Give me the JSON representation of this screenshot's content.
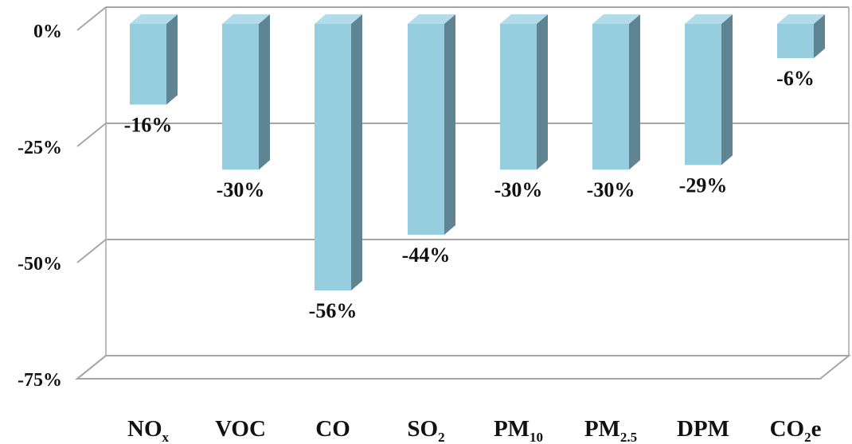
{
  "chart_data": {
    "type": "bar",
    "categories": [
      {
        "main": "NO",
        "sub": "x",
        "tail": ""
      },
      {
        "main": "VOC",
        "sub": "",
        "tail": ""
      },
      {
        "main": "CO",
        "sub": "",
        "tail": ""
      },
      {
        "main": "SO",
        "sub": "2",
        "tail": ""
      },
      {
        "main": "PM",
        "sub": "10",
        "tail": ""
      },
      {
        "main": "PM",
        "sub": "2.5",
        "tail": ""
      },
      {
        "main": "DPM",
        "sub": "",
        "tail": ""
      },
      {
        "main": "CO",
        "sub": "2",
        "tail": "e"
      }
    ],
    "values": [
      -16,
      -30,
      -56,
      -44,
      -30,
      -30,
      -29,
      -6
    ],
    "data_labels": [
      "-16%",
      "-30%",
      "-56%",
      "-44%",
      "-30%",
      "-30%",
      "-29%",
      "-6%"
    ],
    "y_ticks": [
      {
        "value": 0,
        "label": "0%"
      },
      {
        "value": -25,
        "label": "-25%"
      },
      {
        "value": -50,
        "label": "-50%"
      },
      {
        "value": -75,
        "label": "-75%"
      }
    ],
    "ylim": [
      -75,
      0
    ],
    "title": "",
    "xlabel": "",
    "ylabel": "",
    "grid": true,
    "legend": "none",
    "colors": {
      "bar_front": "#96cddf",
      "bar_side": "#5e8591",
      "bar_top": "#b3dcea",
      "grid": "#a6a6a6"
    }
  }
}
